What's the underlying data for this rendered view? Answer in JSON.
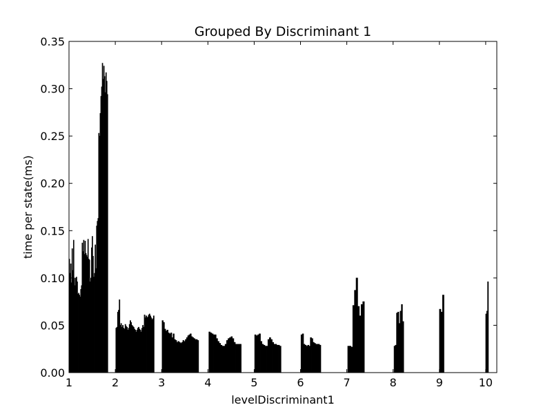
{
  "chart_data": {
    "type": "bar",
    "title": "Grouped By Discriminant 1",
    "xlabel": "levelDiscriminant1",
    "ylabel": "time per state(ms)",
    "ylim": [
      0,
      0.35
    ],
    "yticks": [
      {
        "value": 0.0,
        "label": "0.00"
      },
      {
        "value": 0.05,
        "label": "0.05"
      },
      {
        "value": 0.1,
        "label": "0.10"
      },
      {
        "value": 0.15,
        "label": "0.15"
      },
      {
        "value": 0.2,
        "label": "0.20"
      },
      {
        "value": 0.25,
        "label": "0.25"
      },
      {
        "value": 0.3,
        "label": "0.30"
      },
      {
        "value": 0.35,
        "label": "0.35"
      }
    ],
    "xlim": [
      1,
      10.24
    ],
    "xticks": [
      {
        "value": 1,
        "label": "1"
      },
      {
        "value": 2,
        "label": "2"
      },
      {
        "value": 3,
        "label": "3"
      },
      {
        "value": 4,
        "label": "4"
      },
      {
        "value": 5,
        "label": "5"
      },
      {
        "value": 6,
        "label": "6"
      },
      {
        "value": 7,
        "label": "7"
      },
      {
        "value": 8,
        "label": "8"
      },
      {
        "value": 9,
        "label": "9"
      },
      {
        "value": 10,
        "label": "10"
      }
    ],
    "grid": false,
    "bar_color": "#000000",
    "groups": [
      {
        "level": 1,
        "x_start": 1.0,
        "x_end": 1.84,
        "values": [
          0.12,
          0.105,
          0.115,
          0.095,
          0.131,
          0.108,
          0.14,
          0.1,
          0.092,
          0.1,
          0.101,
          0.096,
          0.083,
          0.084,
          0.082,
          0.08,
          0.088,
          0.092,
          0.137,
          0.128,
          0.14,
          0.125,
          0.139,
          0.126,
          0.124,
          0.122,
          0.141,
          0.12,
          0.119,
          0.096,
          0.1,
          0.132,
          0.144,
          0.123,
          0.101,
          0.105,
          0.135,
          0.11,
          0.155,
          0.16,
          0.163,
          0.253,
          0.25,
          0.274,
          0.292,
          0.302,
          0.327,
          0.31,
          0.324,
          0.313,
          0.296,
          0.317,
          0.308,
          0.294
        ]
      },
      {
        "level": 2,
        "x_start": 2.01,
        "x_end": 2.84,
        "values": [
          0.047,
          0.048,
          0.064,
          0.066,
          0.077,
          0.05,
          0.052,
          0.048,
          0.05,
          0.047,
          0.046,
          0.051,
          0.049,
          0.048,
          0.045,
          0.047,
          0.051,
          0.055,
          0.053,
          0.05,
          0.049,
          0.048,
          0.046,
          0.045,
          0.043,
          0.045,
          0.047,
          0.048,
          0.046,
          0.045,
          0.043,
          0.047,
          0.05,
          0.048,
          0.061,
          0.058,
          0.06,
          0.058,
          0.059,
          0.061,
          0.062,
          0.06,
          0.058,
          0.056,
          0.057,
          0.06
        ]
      },
      {
        "level": 3,
        "x_start": 3.01,
        "x_end": 3.8,
        "values": [
          0.055,
          0.053,
          0.046,
          0.044,
          0.045,
          0.042,
          0.041,
          0.042,
          0.037,
          0.041,
          0.035,
          0.034,
          0.032,
          0.033,
          0.032,
          0.031,
          0.032,
          0.034,
          0.033,
          0.035,
          0.037,
          0.039,
          0.04,
          0.041,
          0.038,
          0.037,
          0.036,
          0.035,
          0.035,
          0.034
        ]
      },
      {
        "level": 4,
        "x_start": 4.02,
        "x_end": 4.72,
        "values": [
          0.043,
          0.042,
          0.041,
          0.04,
          0.04,
          0.036,
          0.033,
          0.031,
          0.029,
          0.028,
          0.028,
          0.03,
          0.034,
          0.036,
          0.037,
          0.038,
          0.036,
          0.032,
          0.03,
          0.03,
          0.03,
          0.03
        ]
      },
      {
        "level": 5,
        "x_start": 5.01,
        "x_end": 5.58,
        "values": [
          0.04,
          0.039,
          0.04,
          0.041,
          0.033,
          0.03,
          0.029,
          0.028,
          0.028,
          0.035,
          0.037,
          0.035,
          0.032,
          0.03,
          0.03,
          0.029,
          0.029,
          0.028
        ]
      },
      {
        "level": 6,
        "x_start": 6.01,
        "x_end": 6.44,
        "values": [
          0.04,
          0.041,
          0.03,
          0.029,
          0.028,
          0.029,
          0.028,
          0.037,
          0.036,
          0.032,
          0.031,
          0.03,
          0.03,
          0.03,
          0.029
        ]
      },
      {
        "level": 7,
        "x_start": 7.02,
        "x_end": 7.38,
        "values": [
          0.028,
          0.028,
          0.027,
          0.071,
          0.087,
          0.1,
          0.07,
          0.06,
          0.072,
          0.075
        ]
      },
      {
        "level": 8,
        "x_start": 8.02,
        "x_end": 8.23,
        "values": [
          0.028,
          0.029,
          0.063,
          0.064,
          0.052,
          0.065,
          0.072,
          0.054
        ]
      },
      {
        "level": 9,
        "x_start": 9.0,
        "x_end": 9.1,
        "values": [
          0.067,
          0.064,
          0.082
        ]
      },
      {
        "level": 10,
        "x_start": 10.0,
        "x_end": 10.06,
        "values": [
          0.062,
          0.065,
          0.096
        ]
      }
    ]
  }
}
